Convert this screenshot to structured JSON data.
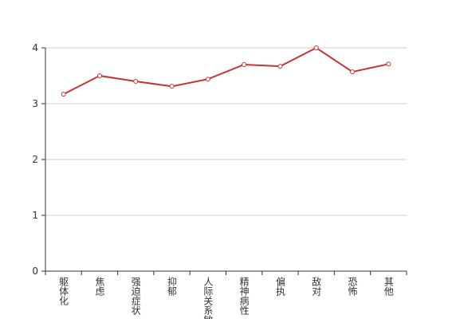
{
  "chart_data": {
    "type": "line",
    "categories": [
      "躯体化",
      "焦虑",
      "强迫症状",
      "抑郁",
      "人际关系敏感",
      "精神病性",
      "偏执",
      "敌对",
      "恐怖",
      "其他"
    ],
    "values": [
      3.17,
      3.5,
      3.4,
      3.31,
      3.44,
      3.7,
      3.67,
      4.0,
      3.57,
      3.71
    ],
    "color": "#c23531",
    "ylim": [
      0,
      4
    ],
    "yticks": [
      0,
      1,
      2,
      3,
      4
    ],
    "grid": true
  }
}
